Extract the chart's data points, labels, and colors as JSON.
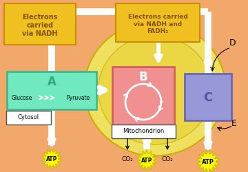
{
  "bg_color": "#f2a86a",
  "mito_outer_color": "#f0e060",
  "mito_inner_color": "#e8d830",
  "box_A_color": "#70e8c0",
  "box_A_edge": "#40b890",
  "box_B_color": "#f09090",
  "box_B_edge": "#d06060",
  "box_C_color": "#9898d8",
  "box_C_edge": "#6868b8",
  "label_box_color": "#f0c020",
  "label_box_edge": "#c89000",
  "white_arrow_color": "#ffffff",
  "black_arrow_color": "#000000",
  "atp_color": "#f8f800",
  "atp_edge": "#c0c000",
  "box_A_label": "A",
  "box_B_label": "B",
  "box_C_label": "C",
  "label_nadh": "Electrons\ncarried\nvia NADH",
  "label_nadhfadh": "Electrons carried\nvia NADH and\nFADH₂",
  "label_cytosol": "Cytosol",
  "label_mito": "Mitochondrion",
  "label_glucose": "Glucose",
  "label_pyruvate": "Pyruvate",
  "label_D": "D",
  "label_E": "E",
  "label_co2": "CO₂",
  "label_atp": "ATP",
  "pipe_lw": 7,
  "pipe_inner_lw": 5
}
